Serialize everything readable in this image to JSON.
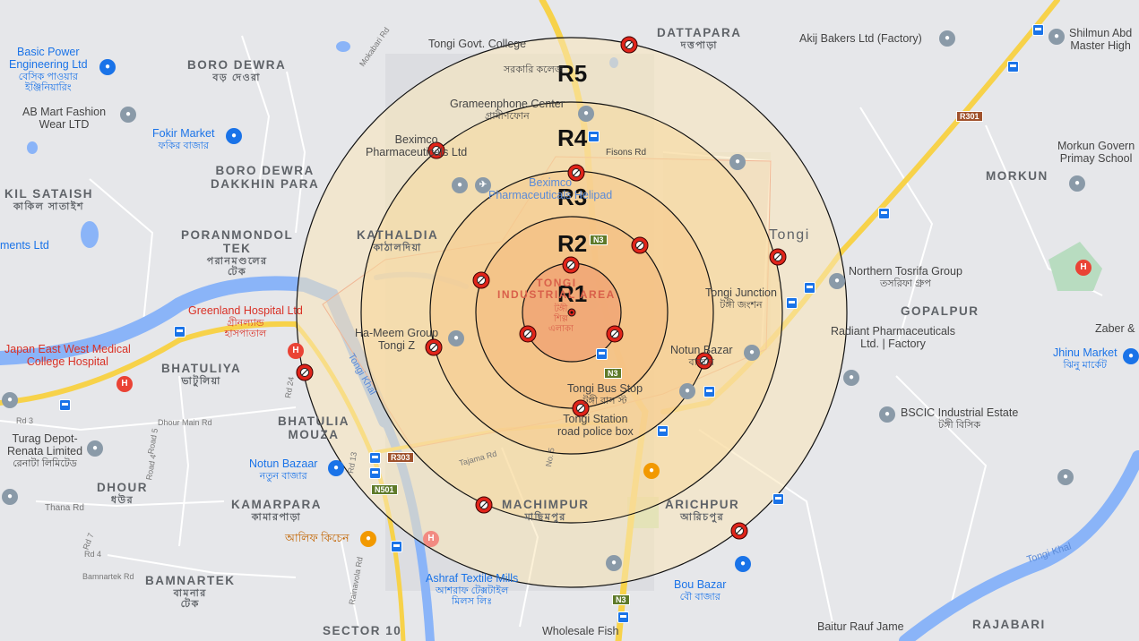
{
  "map": {
    "areas": {
      "dattapara": "DATTAPARA",
      "dattapara_bn": "দত্তপাড়া",
      "boro_dewra": "BORO DEWRA",
      "boro_dewra_bn": "বড় দেওরা",
      "boro_dewra_dakkhin": "BORO DEWRA",
      "boro_dewra_dakkhin_2": "DAKKHIN PARA",
      "kil_sataish": "KIL SATAISH",
      "kil_sataish_bn": "কাকিল সাতাইশ",
      "poranmondol": "PORANMONDOL",
      "poranmondol_2": "TEK",
      "poranmondol_bn": "পরানমণ্ডলের",
      "poranmondol_bn_2": "টেক",
      "kathaldia": "KATHALDIA",
      "kathaldia_bn": "কাঠালদিয়া",
      "tongi": "Tongi",
      "tongi_ind": "TONGI",
      "tongi_ind_2": "INDUSTRIAL AREA",
      "morkun": "MORKUN",
      "gopalpur": "GOPALPUR",
      "bhatuliya": "BHATULIYA",
      "bhatuliya_bn": "ভাটুলিয়া",
      "bhatulia_mouza": "BHATULIA",
      "bhatulia_mouza_2": "MOUZA",
      "dhour": "DHOUR",
      "dhour_bn": "ধউর",
      "kamarpara": "KAMARPARA",
      "kamarpara_bn": "কামারপাড়া",
      "machimpur": "MACHIMPUR",
      "machimpur_bn": "মাছিমপুর",
      "arichpur": "ARICHPUR",
      "arichpur_bn": "আরিচপুর",
      "bamnartek": "BAMNARTEK",
      "bamnartek_bn": "বামনার",
      "bamnartek_bn_2": "টেক",
      "rajabari": "RAJABARI",
      "sector10": "SECTOR 10"
    },
    "places": {
      "basic_power": "Basic Power",
      "basic_power_2": "Engineering Ltd",
      "basic_power_bn": "বেসিক পাওয়ার",
      "basic_power_bn_2": "ইঞ্জিনিয়ারিং",
      "ab_mart": "AB Mart Fashion",
      "ab_mart_2": "Wear LTD",
      "fokir_market": "Fokir Market",
      "fokir_market_bn": "ফকির বাজার",
      "ments_ltd": "ments Ltd",
      "tongi_govt_college": "Tongi Govt. College",
      "tongi_govt_college_bn": "সরকারি কলেজ",
      "grameenphone": "Grameenphone Center",
      "grameenphone_bn": "গ্রামীণফোন",
      "beximco": "Beximco",
      "beximco_2": "Pharmaceuticals Ltd",
      "beximco_heli": "Beximco",
      "beximco_heli_2": "Pharmaceuticals Helipad",
      "fisons_rd": "Fisons Rd",
      "akij": "Akij Bakers Ltd (Factory)",
      "shilmun": "Shilmun Abd",
      "shilmun_2": "Master High",
      "morkun_school": "Morkun Govern",
      "morkun_school_2": "Primay School",
      "northern_tosrifa": "Northern Tosrifa Group",
      "northern_tosrifa_bn": "তসরিফা গ্রুপ",
      "tongi_junction": "Tongi Junction",
      "tongi_junction_bn": "টঙ্গী জংশন",
      "radiant": "Radiant Pharmaceuticals",
      "radiant_2": "Ltd. | Factory",
      "notun_bazar": "Notun Bazar",
      "notun_bazar_bn": "বাজার",
      "zaber": "Zaber &",
      "jhinu_market": "Jhinu Market",
      "jhinu_market_bn": "ঝিনু মার্কেট",
      "bscic": "BSCIC Industrial Estate",
      "bscic_bn": "টঙ্গী বিসিক",
      "ha_meem": "Ha-Meem Group",
      "ha_meem_2": "Tongi Z",
      "tongi_bus_stop": "Tongi Bus Stop",
      "tongi_bus_stop_bn": "টঙ্গী বাস স্ট",
      "tongi_station": "Tongi Station",
      "tongi_station_2": "road police box",
      "greenland": "Greenland Hospital Ltd",
      "greenland_bn": "গ্রীনল্যান্ড",
      "greenland_bn_2": "হাসপাতাল",
      "japan_east": "Japan East West Medical",
      "japan_east_2": "College Hospital",
      "turag_depot": "Turag Depot-",
      "turag_depot_2": "Renata Limited",
      "turag_depot_bn": "রেনাটা লিমিটেড",
      "notun_bazaar": "Notun Bazaar",
      "notun_bazaar_bn": "নতুন বাজার",
      "alif_kitchen": "আলিফ কিচেন",
      "ashraf_textile": "Ashraf Textile Mills",
      "ashraf_textile_bn": "আশরাফ টেক্সটাইল",
      "ashraf_textile_bn_2": "মিলস লিঃ",
      "bou_bazar": "Bou Bazar",
      "bou_bazar_bn": "বৌ বাজার",
      "baitur_rauf": "Baitur Rauf Jame",
      "wholesale_fish": "Wholesale Fish",
      "tongi_khal": "Tongi Khal",
      "tongi_khal_2": "Tongi Khal",
      "tongi_shilpo": "টঙ্গী",
      "tongi_shilpo_2": "শিল্প",
      "tongi_shilpo_3": "এলাকা"
    },
    "roads": {
      "r301": "R301",
      "n3_a": "N3",
      "n3_b": "N3",
      "n3_c": "N3",
      "r303": "R303",
      "n501": "N501",
      "thana_rd": "Thana Rd",
      "bamnartek_rd": "Bamnartek Rd",
      "dhour_main_rd": "Dhour Main Rd",
      "rd3": "Rd 3",
      "rd7": "Rd 7",
      "rd24": "Rd 24",
      "rd13": "Rd 13",
      "road5": "Road 5",
      "road4": "Road 4",
      "rd4": "Rd 4",
      "no5": "No. 5",
      "tajama_rd": "Tajama Rd",
      "mokabari_rd": "Mokabari Rd",
      "rainavola_rd": "Rainavola Rd"
    },
    "rings": [
      "R1",
      "R2",
      "R3",
      "R4",
      "R5"
    ],
    "ring_radii_m": [],
    "colors": {
      "ring_r1": "#f0a070",
      "ring_r2": "#f4bb7e",
      "ring_r3": "#f6c98a",
      "ring_r4": "#f8d89c",
      "ring_r5": "#fae6b8",
      "marker": "#e0241a",
      "highway": "#f7d24a",
      "water": "#8ab4f8"
    }
  }
}
